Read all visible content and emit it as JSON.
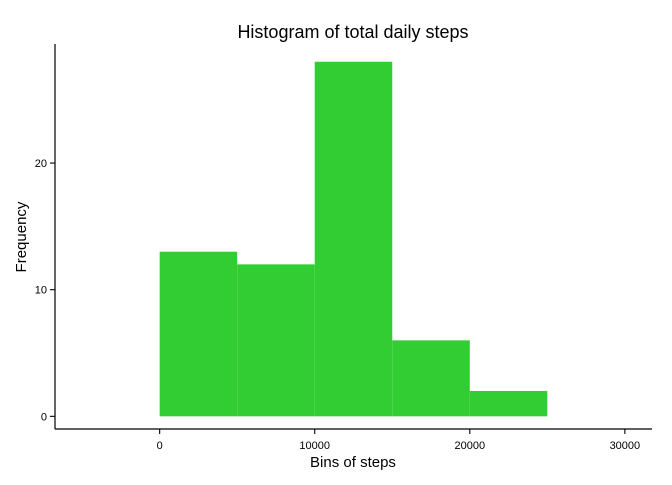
{
  "chart_data": {
    "type": "bar",
    "title": "Histogram of total daily steps",
    "xlabel": "Bins of steps",
    "ylabel": "Frequency",
    "bins": [
      {
        "x0": 0,
        "x1": 5000,
        "value": 13
      },
      {
        "x0": 5000,
        "x1": 10000,
        "value": 12
      },
      {
        "x0": 10000,
        "x1": 15000,
        "value": 28
      },
      {
        "x0": 15000,
        "x1": 20000,
        "value": 6
      },
      {
        "x0": 20000,
        "x1": 25000,
        "value": 2
      }
    ],
    "xlim": [
      -6750,
      31750
    ],
    "ylim": [
      -1,
      29.4
    ],
    "x_ticks": [
      0,
      10000,
      20000,
      30000
    ],
    "x_tick_labels": [
      "0",
      "10000",
      "20000",
      "30000"
    ],
    "y_ticks": [
      0,
      10,
      20
    ],
    "y_tick_labels": [
      "0",
      "10",
      "20"
    ],
    "bar_color": "#32CD32",
    "grid": false
  }
}
